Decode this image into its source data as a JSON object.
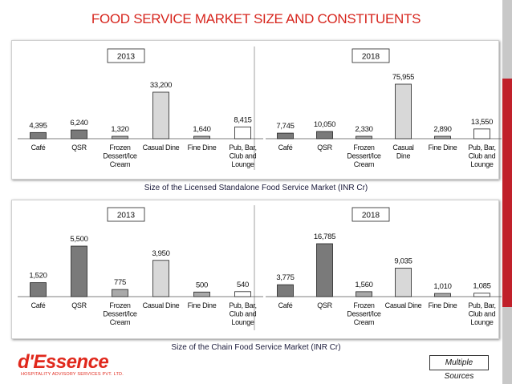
{
  "title": "FOOD SERVICE MARKET SIZE AND CONSTITUENTS",
  "sections": [
    {
      "subtitle": "Size of the Licensed Standalone Food Service Market (INR Cr)"
    },
    {
      "subtitle": "Size of the Chain Food Service Market (INR Cr)"
    }
  ],
  "colors": {
    "title_red": "#d7261e",
    "cafe": "#7a7a7a",
    "qsr": "#7a7a7a",
    "frozen": "#a9a9a9",
    "casual": "#d8d8d8",
    "fine": "#a9a9a9",
    "pub": "#ffffff"
  },
  "chart_data": [
    {
      "type": "bar",
      "title": "2013",
      "section": "Licensed Standalone",
      "categories": [
        "Café",
        "QSR",
        "Frozen Dessert/Ice Cream",
        "Casual Dine",
        "Fine Dine",
        "Pub, Bar, Club and Lounge"
      ],
      "category_lines": [
        [
          "Café"
        ],
        [
          "QSR"
        ],
        [
          "Frozen",
          "Dessert/Ice",
          "Cream"
        ],
        [
          "Casual Dine"
        ],
        [
          "Fine Dine"
        ],
        [
          "Pub, Bar,",
          "Club and",
          "Lounge"
        ]
      ],
      "values": [
        4395,
        6240,
        1320,
        33200,
        1640,
        8415
      ],
      "value_labels": [
        "4,395",
        "6,240",
        "1,320",
        "33,200",
        "1,640",
        "8,415"
      ]
    },
    {
      "type": "bar",
      "title": "2018",
      "section": "Licensed Standalone",
      "categories": [
        "Café",
        "QSR",
        "Frozen Dessert/Ice Cream",
        "Casual Dine",
        "Fine Dine",
        "Pub, Bar, Club and Lounge"
      ],
      "category_lines": [
        [
          "Café"
        ],
        [
          "QSR"
        ],
        [
          "Frozen",
          "Dessert/Ice",
          "Cream"
        ],
        [
          "Casual",
          "Dine"
        ],
        [
          "Fine Dine"
        ],
        [
          "Pub, Bar,",
          "Club and",
          "Lounge"
        ]
      ],
      "values": [
        7745,
        10050,
        2330,
        75955,
        2890,
        13550
      ],
      "value_labels": [
        "7,745",
        "10,050",
        "2,330",
        "75,955",
        "2,890",
        "13,550"
      ]
    },
    {
      "type": "bar",
      "title": "2013",
      "section": "Chain",
      "categories": [
        "Café",
        "QSR",
        "Frozen Dessert/Ice Cream",
        "Casual Dine",
        "Fine Dine",
        "Pub, Bar, Club and Lounge"
      ],
      "category_lines": [
        [
          "Café"
        ],
        [
          "QSR"
        ],
        [
          "Frozen",
          "Dessert/Ice",
          "Cream"
        ],
        [
          "Casual Dine"
        ],
        [
          "Fine Dine"
        ],
        [
          "Pub, Bar,",
          "Club and",
          "Lounge"
        ]
      ],
      "values": [
        1520,
        5500,
        775,
        3950,
        500,
        540
      ],
      "value_labels": [
        "1,520",
        "5,500",
        "775",
        "3,950",
        "500",
        "540"
      ]
    },
    {
      "type": "bar",
      "title": "2018",
      "section": "Chain",
      "categories": [
        "Café",
        "QSR",
        "Frozen Dessert/Ice Cream",
        "Casual Dine",
        "Fine Dine",
        "Pub, Bar, Club and Lounge"
      ],
      "category_lines": [
        [
          "Café"
        ],
        [
          "QSR"
        ],
        [
          "Frozen",
          "Dessert/Ice",
          "Cream"
        ],
        [
          "Casual Dine"
        ],
        [
          "Fine Dine"
        ],
        [
          "Pub, Bar,",
          "Club and",
          "Lounge"
        ]
      ],
      "values": [
        3775,
        16785,
        1560,
        9035,
        1010,
        1085
      ],
      "value_labels": [
        "3,775",
        "16,785",
        "1,560",
        "9,035",
        "1,010",
        "1,085"
      ]
    }
  ],
  "logo": {
    "name": "d'Essence",
    "tagline": "HOSPITALITY ADVISORY SERVICES PVT. LTD."
  },
  "sources": "Multiple Sources"
}
